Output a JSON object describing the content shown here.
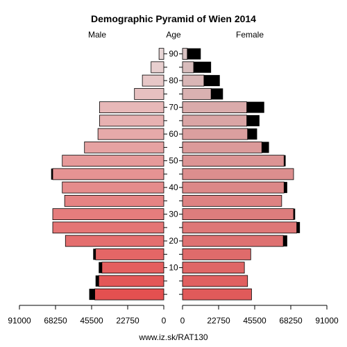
{
  "chart_data": {
    "type": "bar",
    "title": "Demographic Pyramid of Wien 2014",
    "left_label": "Male",
    "center_label": "Age",
    "right_label": "Female",
    "footer": "www.iz.sk/RAT130",
    "age_groups": [
      "0-4",
      "5-9",
      "10-14",
      "15-19",
      "20-24",
      "25-29",
      "30-34",
      "35-39",
      "40-44",
      "45-49",
      "50-54",
      "55-59",
      "60-64",
      "65-69",
      "70-74",
      "75-79",
      "80-84",
      "85-89",
      "90+"
    ],
    "age_tick_labels": [
      "10",
      "20",
      "30",
      "40",
      "50",
      "60",
      "70",
      "80",
      "90"
    ],
    "x_tick_labels_left": [
      "91000",
      "68250",
      "45500",
      "22750",
      "0"
    ],
    "x_tick_labels_right": [
      "0",
      "22750",
      "45500",
      "68250",
      "91000"
    ],
    "xlim": [
      0,
      91000
    ],
    "series": [
      {
        "name": "Male",
        "values": [
          43500,
          41000,
          39000,
          43000,
          62000,
          70000,
          70000,
          62500,
          64000,
          70000,
          64000,
          50000,
          41500,
          40500,
          40500,
          18500,
          13500,
          8000,
          3000
        ]
      },
      {
        "name": "Female",
        "values": [
          43500,
          41000,
          39000,
          43000,
          63500,
          72000,
          70000,
          62500,
          64000,
          70000,
          64000,
          50000,
          41000,
          40500,
          40500,
          18000,
          13500,
          7000,
          3000
        ]
      }
    ],
    "excess": {
      "Male": [
        3500,
        2000,
        2000,
        1500,
        0,
        0,
        0,
        0,
        0,
        1000,
        0,
        0,
        0,
        0,
        0,
        0,
        0,
        0,
        0
      ],
      "Female": [
        0,
        0,
        0,
        0,
        2500,
        2000,
        1000,
        0,
        2000,
        0,
        1000,
        4500,
        6000,
        8000,
        11000,
        7500,
        10000,
        11000,
        8500
      ]
    },
    "colors": {
      "black": "#000000",
      "young": "#e35050",
      "old": "#e8d6d6"
    },
    "grid": false
  }
}
